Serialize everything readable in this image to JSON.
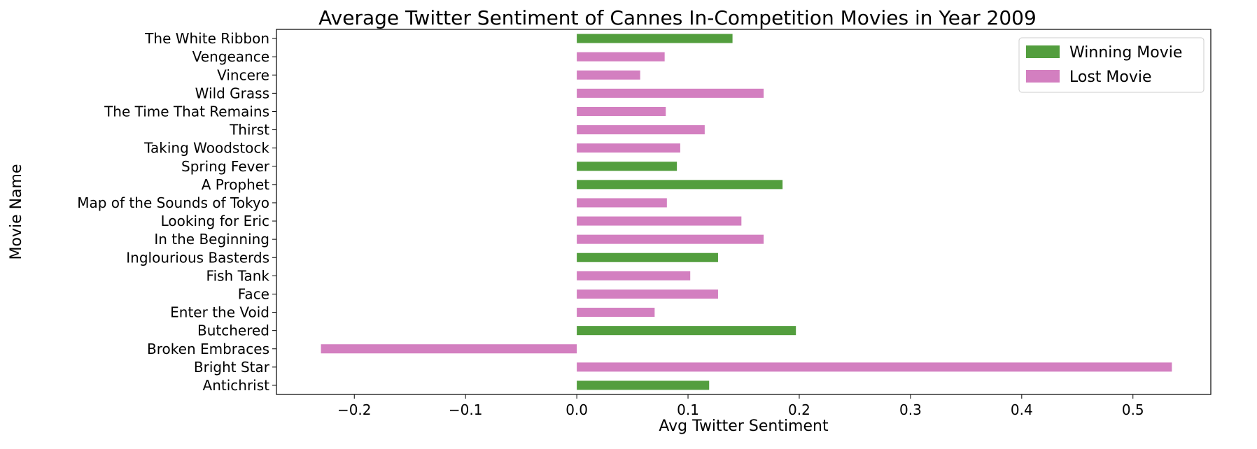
{
  "chart_data": {
    "type": "bar",
    "orientation": "horizontal",
    "title": "Average Twitter Sentiment of Cannes In-Competition Movies in Year 2009",
    "xlabel": "Avg Twitter Sentiment",
    "ylabel": "Movie Name",
    "xlim": [
      -0.27,
      0.57
    ],
    "xticks": [
      -0.2,
      -0.1,
      0.0,
      0.1,
      0.2,
      0.3,
      0.4,
      0.5
    ],
    "xtick_labels": [
      "−0.2",
      "−0.1",
      "0.0",
      "0.1",
      "0.2",
      "0.3",
      "0.4",
      "0.5"
    ],
    "grid": false,
    "legend": {
      "placement": "top-right",
      "entries": [
        {
          "label": "Winning Movie",
          "color": "#539e3e"
        },
        {
          "label": "Lost Movie",
          "color": "#d37fc0"
        }
      ]
    },
    "bars": [
      {
        "category": "The White Ribbon",
        "value": 0.14,
        "group": "Winning Movie"
      },
      {
        "category": "Vengeance",
        "value": 0.079,
        "group": "Lost Movie"
      },
      {
        "category": "Vincere",
        "value": 0.057,
        "group": "Lost Movie"
      },
      {
        "category": "Wild Grass",
        "value": 0.168,
        "group": "Lost Movie"
      },
      {
        "category": "The Time That Remains",
        "value": 0.08,
        "group": "Lost Movie"
      },
      {
        "category": "Thirst",
        "value": 0.115,
        "group": "Lost Movie"
      },
      {
        "category": "Taking Woodstock",
        "value": 0.093,
        "group": "Lost Movie"
      },
      {
        "category": "Spring Fever",
        "value": 0.09,
        "group": "Winning Movie"
      },
      {
        "category": "A Prophet",
        "value": 0.185,
        "group": "Winning Movie"
      },
      {
        "category": "Map of the Sounds of Tokyo",
        "value": 0.081,
        "group": "Lost Movie"
      },
      {
        "category": "Looking for Eric",
        "value": 0.148,
        "group": "Lost Movie"
      },
      {
        "category": "In the Beginning",
        "value": 0.168,
        "group": "Lost Movie"
      },
      {
        "category": "Inglourious Basterds",
        "value": 0.127,
        "group": "Winning Movie"
      },
      {
        "category": "Fish Tank",
        "value": 0.102,
        "group": "Lost Movie"
      },
      {
        "category": "Face",
        "value": 0.127,
        "group": "Lost Movie"
      },
      {
        "category": "Enter the Void",
        "value": 0.07,
        "group": "Lost Movie"
      },
      {
        "category": "Butchered",
        "value": 0.197,
        "group": "Winning Movie"
      },
      {
        "category": "Broken Embraces",
        "value": -0.23,
        "group": "Lost Movie"
      },
      {
        "category": "Bright Star",
        "value": 0.535,
        "group": "Lost Movie"
      },
      {
        "category": "Antichrist",
        "value": 0.119,
        "group": "Winning Movie"
      }
    ]
  }
}
